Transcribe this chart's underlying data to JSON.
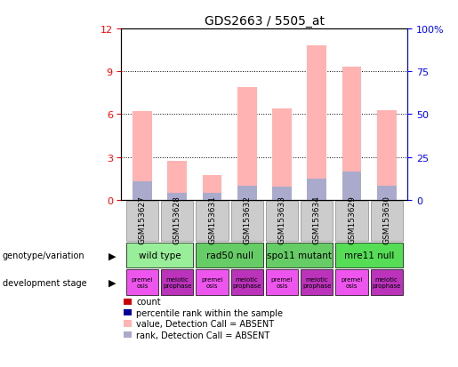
{
  "title": "GDS2663 / 5505_at",
  "samples": [
    "GSM153627",
    "GSM153628",
    "GSM153631",
    "GSM153632",
    "GSM153633",
    "GSM153634",
    "GSM153629",
    "GSM153630"
  ],
  "bar_values_pink": [
    6.2,
    2.7,
    1.7,
    7.9,
    6.4,
    10.8,
    9.3,
    6.3
  ],
  "bar_values_blue": [
    1.3,
    0.5,
    0.5,
    1.0,
    0.9,
    1.5,
    2.0,
    1.0
  ],
  "ylim_left": [
    0,
    12
  ],
  "ylim_right": [
    0,
    100
  ],
  "yticks_left": [
    0,
    3,
    6,
    9,
    12
  ],
  "yticks_right": [
    0,
    25,
    50,
    75,
    100
  ],
  "ytick_labels_left": [
    "0",
    "3",
    "6",
    "9",
    "12"
  ],
  "ytick_labels_right": [
    "0",
    "25",
    "50",
    "75",
    "100%"
  ],
  "bar_width": 0.55,
  "pink_color": "#FFB3B3",
  "blue_color": "#AAAACC",
  "geno_groups": [
    {
      "c1": 0,
      "c2": 1,
      "label": "wild type",
      "color": "#99EE99"
    },
    {
      "c1": 2,
      "c2": 3,
      "label": "rad50 null",
      "color": "#66CC66"
    },
    {
      "c1": 4,
      "c2": 5,
      "label": "spo11 mutant",
      "color": "#66CC66"
    },
    {
      "c1": 6,
      "c2": 7,
      "label": "mre11 null",
      "color": "#55DD55"
    }
  ],
  "dev_premei_color": "#EE55EE",
  "dev_meiotic_color": "#BB33BB",
  "label_genotype": "genotype/variation",
  "label_dev": "development stage",
  "legend": [
    {
      "color": "#CC0000",
      "label": "count"
    },
    {
      "color": "#000099",
      "label": "percentile rank within the sample"
    },
    {
      "color": "#FFB3B3",
      "label": "value, Detection Call = ABSENT"
    },
    {
      "color": "#AAAACC",
      "label": "rank, Detection Call = ABSENT"
    }
  ]
}
